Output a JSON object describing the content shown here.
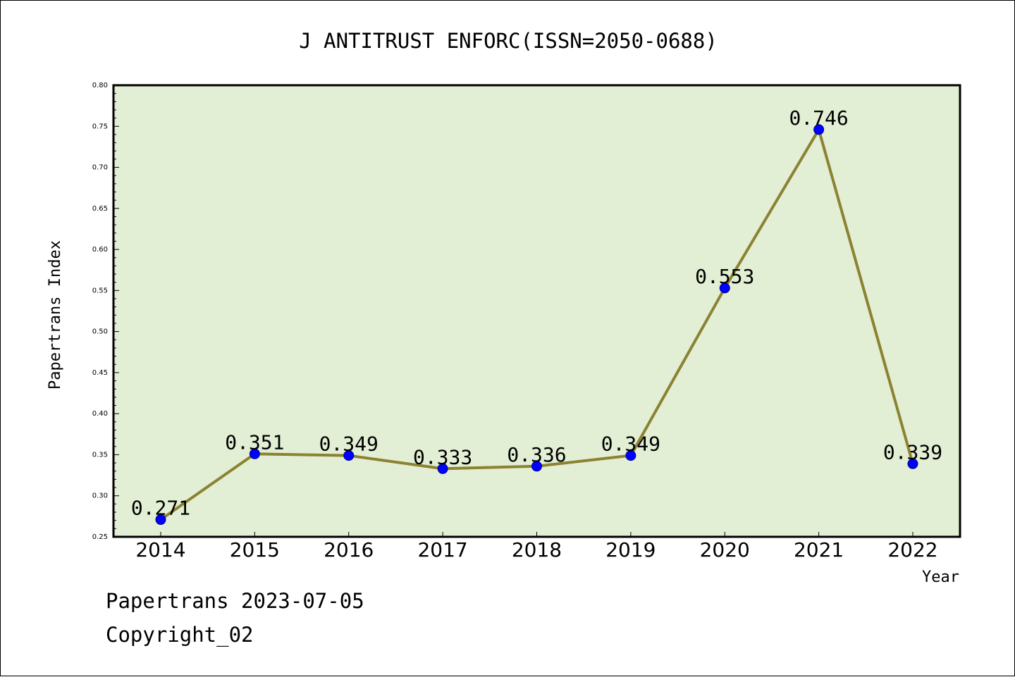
{
  "chart_data": {
    "type": "line",
    "title": "J ANTITRUST ENFORC(ISSN=2050-0688)",
    "xlabel": "Year",
    "ylabel": "Papertrans Index",
    "categories": [
      "2014",
      "2015",
      "2016",
      "2017",
      "2018",
      "2019",
      "2020",
      "2021",
      "2022"
    ],
    "values": [
      0.271,
      0.351,
      0.349,
      0.333,
      0.336,
      0.349,
      0.553,
      0.746,
      0.339
    ],
    "data_labels": [
      "0.271",
      "0.351",
      "0.349",
      "0.333",
      "0.336",
      "0.349",
      "0.553",
      "0.746",
      "0.339"
    ],
    "ylim": [
      0.25,
      0.8
    ],
    "yticks": [
      "0.25",
      "0.30",
      "0.35",
      "0.40",
      "0.45",
      "0.50",
      "0.55",
      "0.60",
      "0.65",
      "0.70",
      "0.75",
      "0.80"
    ],
    "grid": false,
    "legend": "none",
    "colors": {
      "plot_background": "#e2efd4",
      "line": "#8b8232",
      "marker": "#0000ff"
    }
  },
  "footer": {
    "date_text": "Papertrans 2023-07-05",
    "copyright_text": "Copyright_02"
  }
}
